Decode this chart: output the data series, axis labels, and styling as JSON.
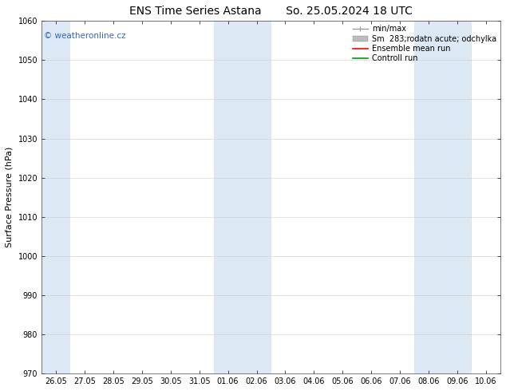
{
  "title_left": "ENS Time Series Astana",
  "title_right": "So. 25.05.2024 18 UTC",
  "ylabel": "Surface Pressure (hPa)",
  "ylim": [
    970,
    1060
  ],
  "yticks": [
    970,
    980,
    990,
    1000,
    1010,
    1020,
    1030,
    1040,
    1050,
    1060
  ],
  "xtick_labels": [
    "26.05",
    "27.05",
    "28.05",
    "29.05",
    "30.05",
    "31.05",
    "01.06",
    "02.06",
    "03.06",
    "04.06",
    "05.06",
    "06.06",
    "07.06",
    "08.06",
    "09.06",
    "10.06"
  ],
  "shaded_indices": [
    0,
    6,
    7,
    13,
    14
  ],
  "shaded_color": "#dce9f5",
  "bg_color": "#ffffff",
  "watermark_text": "© weatheronline.cz",
  "watermark_color": "#3366bb",
  "legend_labels": [
    "min/max",
    "Sm  283;rodatn acute; odchylka",
    "Ensemble mean run",
    "Controll run"
  ],
  "legend_colors": [
    "#999999",
    "#bbbbbb",
    "#ff0000",
    "#009900"
  ],
  "legend_styles": [
    "minmax",
    "band",
    "line",
    "line"
  ],
  "title_fontsize": 10,
  "tick_fontsize": 7,
  "label_fontsize": 8,
  "legend_fontsize": 7
}
